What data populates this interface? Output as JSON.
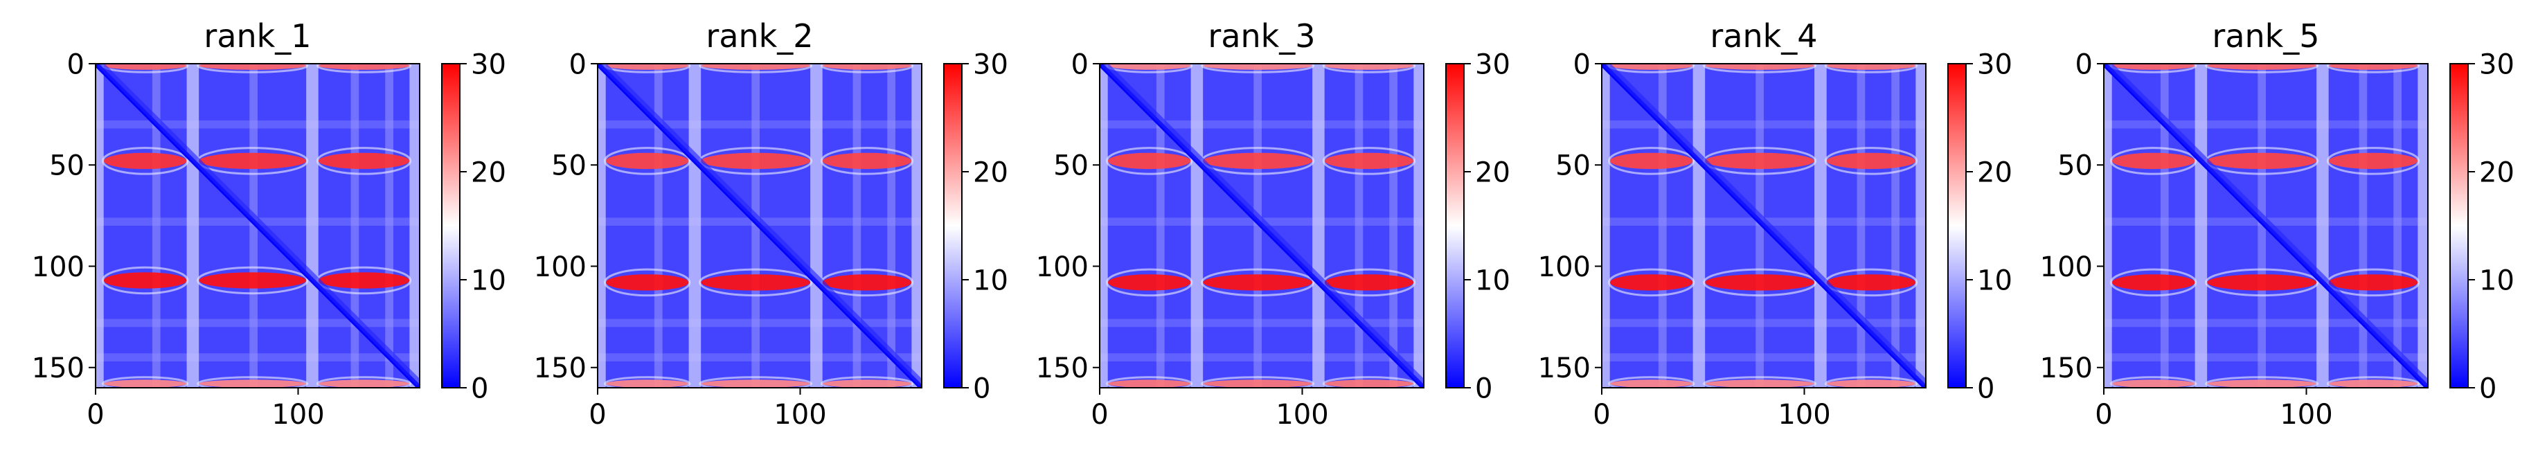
{
  "chart_data": [
    {
      "type": "heatmap",
      "title": "rank_1",
      "size": 160,
      "xlim": [
        0,
        160
      ],
      "ylim": [
        160,
        0
      ],
      "xticks": [
        0,
        100
      ],
      "yticks": [
        0,
        50,
        100,
        150
      ],
      "colorbar": {
        "min": 0,
        "max": 30,
        "ticks": [
          0,
          10,
          20,
          30
        ],
        "colormap": "bwr"
      },
      "bands": [
        {
          "index": 1,
          "value": 24
        },
        {
          "index": 48,
          "value": 27
        },
        {
          "index": 107,
          "value": 29
        },
        {
          "index": 158,
          "value": 22
        }
      ],
      "grid": false
    },
    {
      "type": "heatmap",
      "title": "rank_2",
      "size": 160,
      "xlim": [
        0,
        160
      ],
      "ylim": [
        160,
        0
      ],
      "xticks": [
        0,
        100
      ],
      "yticks": [
        0,
        50,
        100,
        150
      ],
      "colorbar": {
        "min": 0,
        "max": 30,
        "ticks": [
          0,
          10,
          20,
          30
        ],
        "colormap": "bwr"
      },
      "bands": [
        {
          "index": 1,
          "value": 23
        },
        {
          "index": 48,
          "value": 26
        },
        {
          "index": 108,
          "value": 29
        },
        {
          "index": 158,
          "value": 22
        }
      ],
      "grid": false
    },
    {
      "type": "heatmap",
      "title": "rank_3",
      "size": 160,
      "xlim": [
        0,
        160
      ],
      "ylim": [
        160,
        0
      ],
      "xticks": [
        0,
        100
      ],
      "yticks": [
        0,
        50,
        100,
        150
      ],
      "colorbar": {
        "min": 0,
        "max": 30,
        "ticks": [
          0,
          10,
          20,
          30
        ],
        "colormap": "bwr"
      },
      "bands": [
        {
          "index": 1,
          "value": 22
        },
        {
          "index": 48,
          "value": 26
        },
        {
          "index": 108,
          "value": 29
        },
        {
          "index": 158,
          "value": 23
        }
      ],
      "grid": false
    },
    {
      "type": "heatmap",
      "title": "rank_4",
      "size": 160,
      "xlim": [
        0,
        160
      ],
      "ylim": [
        160,
        0
      ],
      "xticks": [
        0,
        100
      ],
      "yticks": [
        0,
        50,
        100,
        150
      ],
      "colorbar": {
        "min": 0,
        "max": 30,
        "ticks": [
          0,
          10,
          20,
          30
        ],
        "colormap": "bwr"
      },
      "bands": [
        {
          "index": 1,
          "value": 23
        },
        {
          "index": 48,
          "value": 26
        },
        {
          "index": 108,
          "value": 29
        },
        {
          "index": 158,
          "value": 22
        }
      ],
      "grid": false
    },
    {
      "type": "heatmap",
      "title": "rank_5",
      "size": 160,
      "xlim": [
        0,
        160
      ],
      "ylim": [
        160,
        0
      ],
      "xticks": [
        0,
        100
      ],
      "yticks": [
        0,
        50,
        100,
        150
      ],
      "colorbar": {
        "min": 0,
        "max": 30,
        "ticks": [
          0,
          10,
          20,
          30
        ],
        "colormap": "bwr"
      },
      "bands": [
        {
          "index": 1,
          "value": 24
        },
        {
          "index": 48,
          "value": 26
        },
        {
          "index": 108,
          "value": 29
        },
        {
          "index": 158,
          "value": 22
        }
      ],
      "grid": false
    }
  ]
}
